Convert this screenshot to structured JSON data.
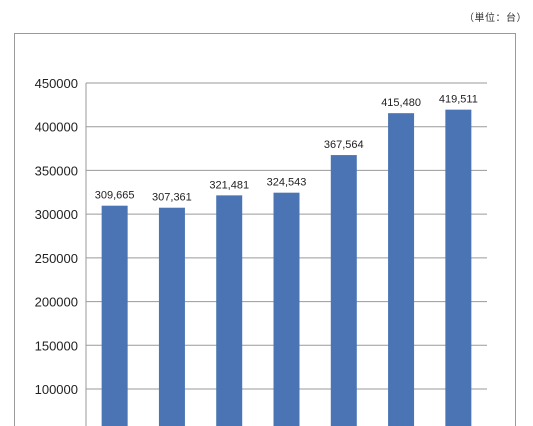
{
  "unit_note": "（単位：台）",
  "chart_data": {
    "type": "bar",
    "categories": [
      "",
      "",
      "",
      "",
      "",
      "",
      ""
    ],
    "values": [
      309665,
      307361,
      321481,
      324543,
      367564,
      415480,
      419511
    ],
    "data_labels": [
      "309,665",
      "307,361",
      "321,481",
      "324,543",
      "367,564",
      "415,480",
      "419,511"
    ],
    "title": "",
    "xlabel": "",
    "ylabel": "",
    "ylim": [
      60000,
      450000
    ],
    "yticks": [
      100000,
      150000,
      200000,
      250000,
      300000,
      350000,
      400000,
      450000
    ],
    "ytick_labels": [
      "100000",
      "150000",
      "200000",
      "250000",
      "300000",
      "350000",
      "400000",
      "450000"
    ],
    "grid": true,
    "bar_color": "#4a74b4",
    "grid_color": "#9a9a9a"
  }
}
